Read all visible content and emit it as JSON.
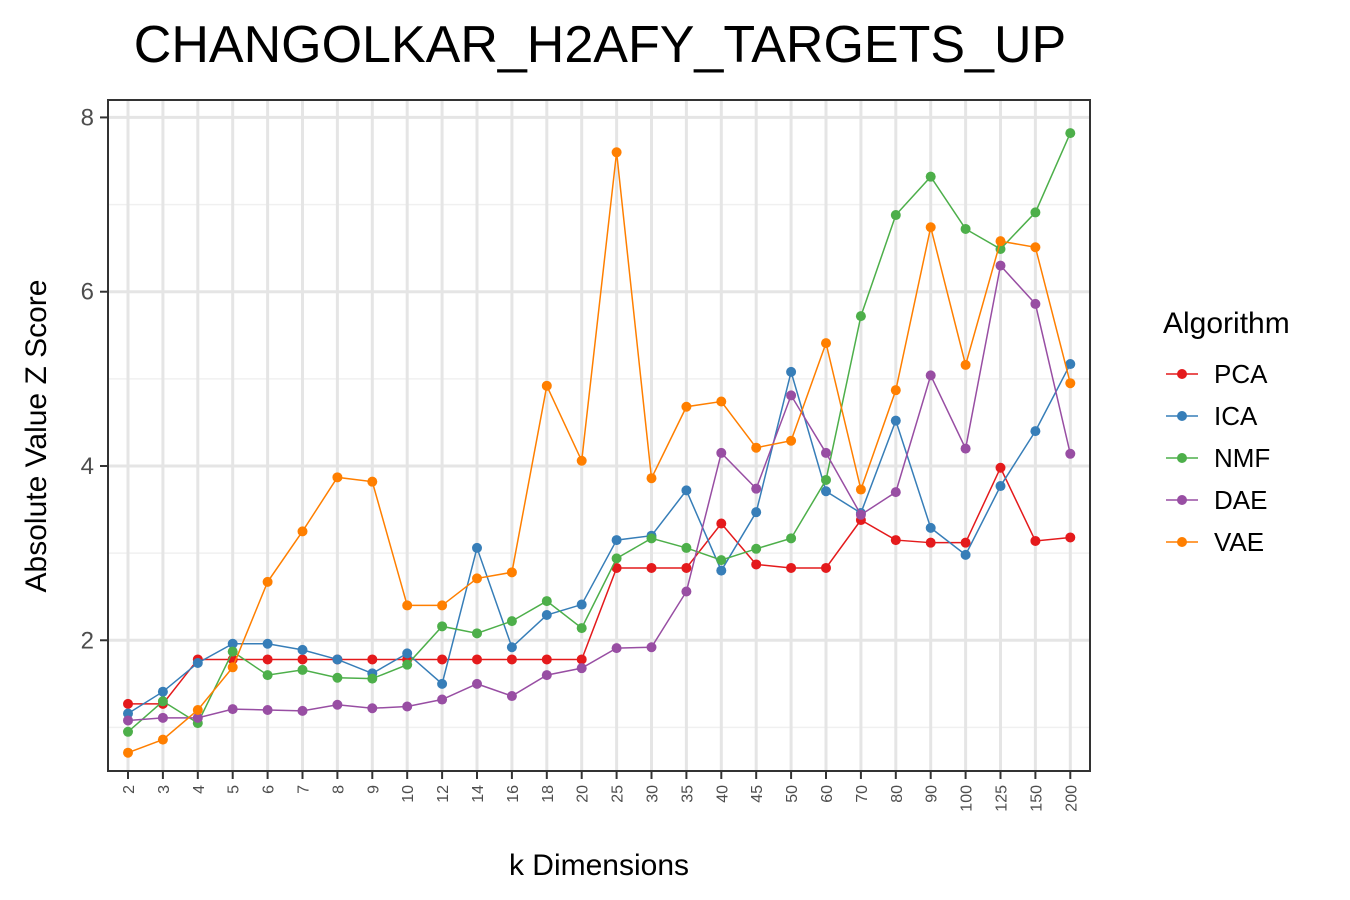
{
  "chart_data": {
    "type": "line",
    "title": "CHANGOLKAR_H2AFY_TARGETS_UP",
    "xlabel": "k Dimensions",
    "ylabel": "Absolute Value Z Score",
    "ylim": [
      0.5,
      8.2
    ],
    "yticks": [
      2,
      4,
      6,
      8
    ],
    "grid": true,
    "legend_title": "Algorithm",
    "legend_position": "right",
    "categories": [
      "2",
      "3",
      "4",
      "5",
      "6",
      "7",
      "8",
      "9",
      "10",
      "12",
      "14",
      "16",
      "18",
      "20",
      "25",
      "30",
      "35",
      "40",
      "45",
      "50",
      "60",
      "70",
      "80",
      "90",
      "100",
      "125",
      "150",
      "200"
    ],
    "series": [
      {
        "name": "PCA",
        "color": "#e41a1c",
        "values": [
          1.27,
          1.27,
          1.78,
          1.78,
          1.78,
          1.78,
          1.78,
          1.78,
          1.78,
          1.78,
          1.78,
          1.78,
          1.78,
          1.78,
          2.83,
          2.83,
          2.83,
          3.34,
          2.87,
          2.83,
          2.83,
          3.38,
          3.15,
          3.12,
          3.12,
          3.98,
          3.14,
          3.18
        ]
      },
      {
        "name": "ICA",
        "color": "#377eb8",
        "values": [
          1.16,
          1.41,
          1.74,
          1.96,
          1.96,
          1.89,
          1.78,
          1.62,
          1.85,
          1.5,
          3.06,
          1.92,
          2.29,
          2.41,
          3.15,
          3.2,
          3.72,
          2.8,
          3.47,
          5.08,
          3.71,
          3.46,
          4.52,
          3.29,
          2.98,
          3.77,
          4.4,
          5.17
        ]
      },
      {
        "name": "NMF",
        "color": "#4daf4a",
        "values": [
          0.95,
          1.3,
          1.05,
          1.87,
          1.6,
          1.66,
          1.57,
          1.56,
          1.72,
          2.16,
          2.08,
          2.22,
          2.45,
          2.14,
          2.94,
          3.17,
          3.06,
          2.92,
          3.05,
          3.17,
          3.84,
          5.72,
          6.88,
          7.32,
          6.72,
          6.49,
          6.91,
          7.82
        ]
      },
      {
        "name": "DAE",
        "color": "#984ea3",
        "values": [
          1.08,
          1.11,
          1.11,
          1.21,
          1.2,
          1.19,
          1.26,
          1.22,
          1.24,
          1.32,
          1.5,
          1.36,
          1.6,
          1.68,
          1.91,
          1.92,
          2.56,
          4.15,
          3.74,
          4.81,
          4.15,
          3.44,
          3.7,
          5.04,
          4.2,
          6.3,
          5.86,
          4.14
        ]
      },
      {
        "name": "VAE",
        "color": "#ff7f00",
        "values": [
          0.71,
          0.86,
          1.2,
          1.69,
          2.67,
          3.25,
          3.87,
          3.82,
          2.4,
          2.4,
          2.71,
          2.78,
          4.92,
          4.06,
          7.6,
          3.86,
          4.68,
          4.74,
          4.21,
          4.29,
          5.41,
          3.73,
          4.87,
          6.74,
          5.16,
          6.58,
          6.51,
          4.95
        ]
      }
    ]
  }
}
